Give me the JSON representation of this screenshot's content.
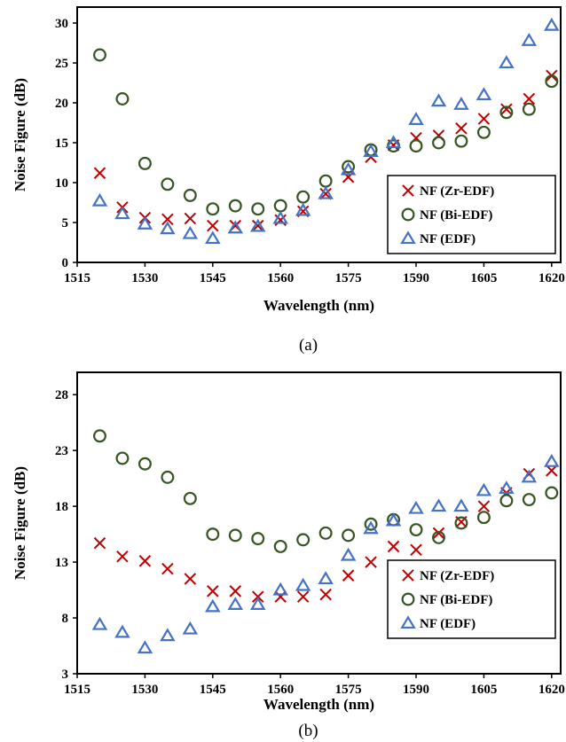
{
  "chart_data": [
    {
      "panel_label": "(a)",
      "type": "scatter",
      "xlabel": "Wavelength (nm)",
      "ylabel": "Noise Figure (dB)",
      "xlim": [
        1515,
        1622
      ],
      "ylim": [
        0,
        32
      ],
      "xticks": [
        1515,
        1530,
        1545,
        1560,
        1575,
        1590,
        1605,
        1620
      ],
      "yticks": [
        0,
        5,
        10,
        15,
        20,
        25,
        30
      ],
      "grid": false,
      "legend_position": "lower-right",
      "x": [
        1520,
        1525,
        1530,
        1535,
        1540,
        1545,
        1550,
        1555,
        1560,
        1565,
        1570,
        1575,
        1580,
        1585,
        1590,
        1595,
        1600,
        1605,
        1610,
        1615,
        1620
      ],
      "series": [
        {
          "name": "NF (Zr-EDF)",
          "marker": "x",
          "color": "#c00000",
          "values": [
            11.2,
            6.9,
            5.6,
            5.4,
            5.5,
            4.6,
            4.6,
            4.6,
            5.3,
            6.4,
            8.6,
            10.7,
            13.2,
            14.7,
            15.6,
            15.9,
            16.8,
            18.0,
            19.2,
            20.5,
            23.4
          ]
        },
        {
          "name": "NF (Bi-EDF)",
          "marker": "circle",
          "color": "#375623",
          "values": [
            26.0,
            20.5,
            12.4,
            9.8,
            8.4,
            6.7,
            7.1,
            6.7,
            7.1,
            8.2,
            10.2,
            12.0,
            14.1,
            14.6,
            14.6,
            15.0,
            15.2,
            16.3,
            18.8,
            19.2,
            22.7
          ]
        },
        {
          "name": "NF (EDF)",
          "marker": "triangle",
          "color": "#4472c4",
          "values": [
            7.7,
            6.1,
            4.8,
            4.2,
            3.6,
            3.0,
            4.3,
            4.5,
            5.5,
            6.5,
            8.6,
            11.6,
            13.9,
            15.0,
            17.9,
            20.2,
            19.8,
            21.0,
            25.0,
            27.8,
            29.7
          ]
        }
      ]
    },
    {
      "panel_label": "(b)",
      "type": "scatter",
      "xlabel": "Wavelength (nm)",
      "ylabel": "Noise Figure (dB)",
      "xlim": [
        1515,
        1622
      ],
      "ylim": [
        3,
        30
      ],
      "xticks": [
        1515,
        1530,
        1545,
        1560,
        1575,
        1590,
        1605,
        1620
      ],
      "yticks": [
        3,
        8,
        13,
        18,
        23,
        28
      ],
      "grid": false,
      "legend_position": "lower-right",
      "x": [
        1520,
        1525,
        1530,
        1535,
        1540,
        1545,
        1550,
        1555,
        1560,
        1565,
        1570,
        1575,
        1580,
        1585,
        1590,
        1595,
        1600,
        1605,
        1610,
        1615,
        1620
      ],
      "series": [
        {
          "name": "NF (Zr-EDF)",
          "marker": "x",
          "color": "#c00000",
          "values": [
            14.7,
            13.5,
            13.1,
            12.4,
            11.5,
            10.4,
            10.4,
            9.9,
            9.9,
            9.9,
            10.1,
            11.8,
            13.0,
            14.4,
            14.1,
            15.6,
            16.6,
            18.0,
            19.2,
            20.9,
            21.2
          ]
        },
        {
          "name": "NF (Bi-EDF)",
          "marker": "circle",
          "color": "#375623",
          "values": [
            24.3,
            22.3,
            21.8,
            20.6,
            18.7,
            15.5,
            15.4,
            15.1,
            14.4,
            15.0,
            15.6,
            15.4,
            16.4,
            16.8,
            15.9,
            15.2,
            16.5,
            17.0,
            18.5,
            18.6,
            19.2
          ]
        },
        {
          "name": "NF (EDF)",
          "marker": "triangle",
          "color": "#4472c4",
          "values": [
            7.4,
            6.7,
            5.3,
            6.4,
            7.0,
            9.0,
            9.2,
            9.2,
            10.5,
            10.9,
            11.5,
            13.6,
            16.0,
            16.7,
            17.8,
            18.0,
            18.0,
            19.4,
            19.6,
            20.6,
            22.0
          ]
        }
      ]
    }
  ]
}
